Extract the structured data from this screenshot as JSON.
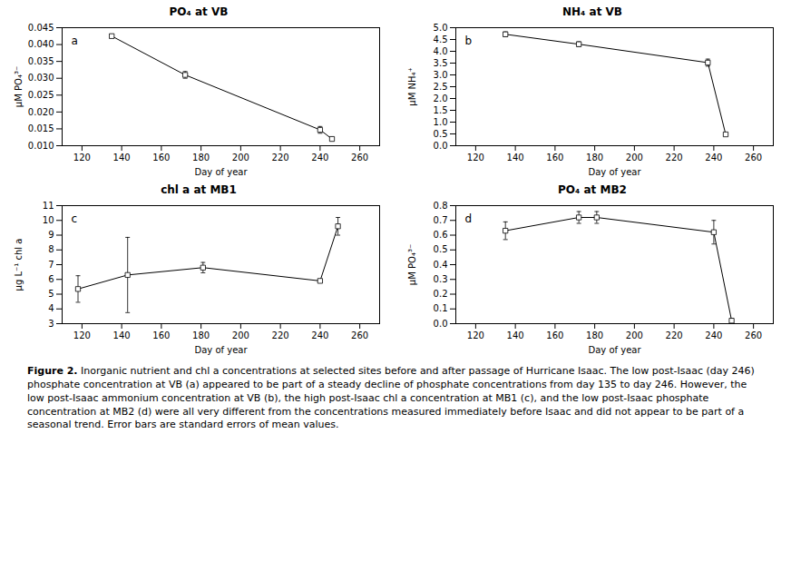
{
  "chart_data": [
    {
      "type": "line",
      "title": "PO₄ at VB",
      "xlabel": "Day of year",
      "ylabel": "μM PO₄³⁻",
      "annotation": "a",
      "color": "black",
      "marker": "square",
      "x": [
        135,
        172,
        240,
        246
      ],
      "values": [
        0.0425,
        0.031,
        0.0147,
        0.012
      ],
      "yerr": [
        0.0005,
        0.001,
        0.001,
        0.0005
      ],
      "xlim": [
        110,
        270
      ],
      "xticks": [
        120,
        140,
        160,
        180,
        200,
        220,
        240,
        260
      ],
      "ylim": [
        0.01,
        0.045
      ],
      "yticks": [
        {
          "value": 0.01,
          "label": "0.010"
        },
        0.015,
        {
          "value": 0.02,
          "label": "0.020"
        },
        0.025,
        {
          "value": 0.03,
          "label": "0.030"
        },
        0.035,
        {
          "value": 0.04,
          "label": "0.040"
        },
        0.045
      ]
    },
    {
      "type": "line",
      "title": "NH₄ at VB",
      "xlabel": "Day of year",
      "ylabel": "μM NH₄⁺",
      "annotation": "b",
      "color": "black",
      "marker": "square",
      "x": [
        135,
        172,
        237,
        246
      ],
      "values": [
        4.72,
        4.3,
        3.52,
        0.48
      ],
      "yerr": [
        0.1,
        0.1,
        0.15,
        0.05
      ],
      "xlim": [
        110,
        270
      ],
      "xticks": [
        120,
        140,
        160,
        180,
        200,
        220,
        240,
        260
      ],
      "ylim": [
        0,
        5
      ],
      "yticks": [
        {
          "value": 0,
          "label": "0.0"
        },
        0.5,
        {
          "value": 1,
          "label": "1.0"
        },
        1.5,
        {
          "value": 2,
          "label": "2.0"
        },
        2.5,
        {
          "value": 3,
          "label": "3.0"
        },
        3.5,
        {
          "value": 4,
          "label": "4.0"
        },
        4.5,
        {
          "value": 5,
          "label": "5.0"
        }
      ]
    },
    {
      "type": "line",
      "title": "chl a at MB1",
      "xlabel": "Day of year",
      "ylabel": "μg L⁻¹ chl a",
      "annotation": "c",
      "color": "black",
      "marker": "square",
      "x": [
        118,
        143,
        181,
        240,
        249
      ],
      "values": [
        5.35,
        6.3,
        6.8,
        5.9,
        9.6
      ],
      "yerr": [
        0.9,
        2.55,
        0.35,
        0.05,
        0.6
      ],
      "xlim": [
        110,
        270
      ],
      "xticks": [
        120,
        140,
        160,
        180,
        200,
        220,
        240,
        260
      ],
      "ylim": [
        3,
        11
      ],
      "yticks": [
        3,
        4,
        5,
        6,
        7,
        8,
        9,
        10,
        11
      ]
    },
    {
      "type": "line",
      "title": "PO₄ at MB2",
      "xlabel": "Day of year",
      "ylabel": "μM PO₄³⁻",
      "annotation": "d",
      "color": "black",
      "marker": "square",
      "x": [
        135,
        172,
        181,
        240,
        249
      ],
      "values": [
        0.63,
        0.72,
        0.72,
        0.62,
        0.02
      ],
      "yerr": [
        0.06,
        0.04,
        0.04,
        0.08,
        0.015
      ],
      "xlim": [
        110,
        270
      ],
      "xticks": [
        120,
        140,
        160,
        180,
        200,
        220,
        240,
        260
      ],
      "ylim": [
        0,
        0.8
      ],
      "yticks": [
        {
          "value": 0,
          "label": "0.0"
        },
        0.1,
        0.2,
        0.3,
        0.4,
        0.5,
        0.6,
        0.7,
        0.8
      ]
    }
  ],
  "caption_title": "Figure 2.",
  "caption": "Inorganic nutrient and chl a concentrations at selected sites before and after passage of Hurricane Isaac. The low post-Isaac (day 246) phosphate concentration at VB (a) appeared to be part of a steady decline of phosphate concentrations from day 135 to day 246. However, the low post-Isaac ammonium concentration at VB (b), the high post-Isaac chl a concentration at MB1 (c), and the low post-Isaac phosphate concentration at MB2 (d) were all very different from the concentrations measured immediately before Isaac and did not appear to be part of a seasonal trend. Error bars are standard errors of mean values."
}
